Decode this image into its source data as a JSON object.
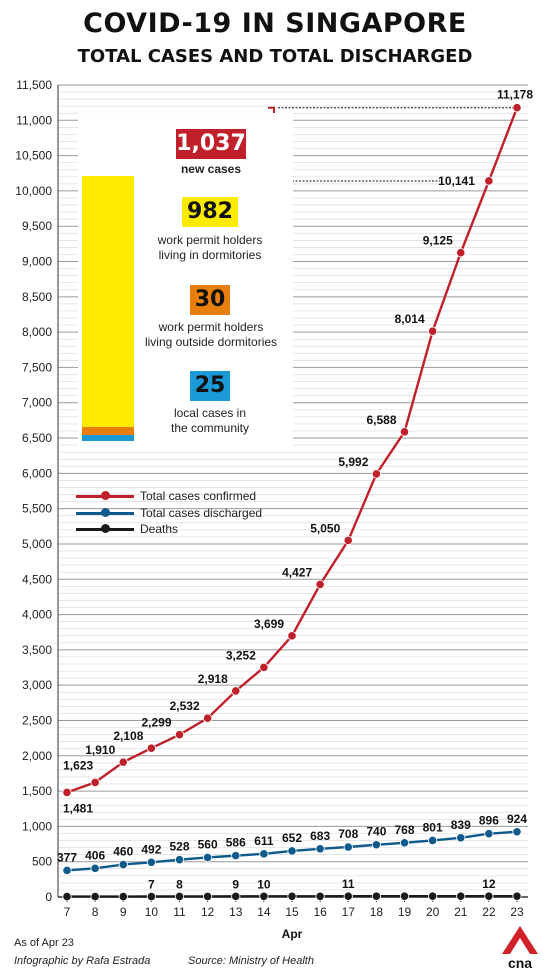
{
  "header": {
    "title": "COVID-19 IN SINGAPORE",
    "subtitle": "TOTAL CASES AND TOTAL DISCHARGED"
  },
  "inset": {
    "new_cases": {
      "value": "1,037",
      "caption": "new cases",
      "color": "#c0202a"
    },
    "dorm": {
      "value": "982",
      "caption1": "work permit holders",
      "caption2": "living in dormitories",
      "color": "#ffeb00",
      "amount": 982
    },
    "outside": {
      "value": "30",
      "caption1": "work permit holders",
      "caption2": "living outside dormitories",
      "color": "#e87e0c",
      "amount": 30
    },
    "local": {
      "value": "25",
      "caption1": "local cases in",
      "caption2": "the community",
      "color": "#1a9ad6",
      "amount": 25
    }
  },
  "footer": {
    "as_of": "As of Apr 23",
    "credit": "Infographic by Rafa Estrada",
    "source": "Source: Ministry of Health",
    "logo_text": "cna"
  },
  "chart_data": {
    "type": "line",
    "x": [
      "7",
      "8",
      "9",
      "10",
      "11",
      "12",
      "13",
      "14",
      "15",
      "16",
      "17",
      "18",
      "19",
      "20",
      "21",
      "22",
      "23"
    ],
    "xlabel": "Apr",
    "ylabel": "",
    "ylim": [
      0,
      11500
    ],
    "yticks": [
      0,
      500,
      1000,
      1500,
      2000,
      2500,
      3000,
      3500,
      4000,
      4500,
      5000,
      5500,
      6000,
      6500,
      7000,
      7500,
      8000,
      8500,
      9000,
      9500,
      10000,
      10500,
      11000,
      11500
    ],
    "ytick_labels": [
      "0",
      "500",
      "1,000",
      "1,500",
      "2,000",
      "2,500",
      "3,000",
      "3,500",
      "4,000",
      "4,500",
      "5,000",
      "5,500",
      "6,000",
      "6,500",
      "7,000",
      "7,500",
      "8,000",
      "8,500",
      "9,000",
      "9,500",
      "10,000",
      "10,500",
      "11,000",
      "11,500"
    ],
    "grid": true,
    "legend": "upper-left",
    "series": [
      {
        "name": "Total cases confirmed",
        "color": "#c0202a",
        "values": [
          1481,
          1623,
          1910,
          2108,
          2299,
          2532,
          2918,
          3252,
          3699,
          4427,
          5050,
          5992,
          6588,
          8014,
          9125,
          10141,
          11178
        ],
        "labels": [
          "1,481",
          "1,623",
          "1,910",
          "2,108",
          "2,299",
          "2,532",
          "2,918",
          "3,252",
          "3,699",
          "4,427",
          "5,050",
          "5,992",
          "6,588",
          "8,014",
          "9,125",
          "10,141",
          "11,178"
        ]
      },
      {
        "name": "Total cases discharged",
        "color": "#0f5a8c",
        "values": [
          377,
          406,
          460,
          492,
          528,
          560,
          586,
          611,
          652,
          683,
          708,
          740,
          768,
          801,
          839,
          896,
          924
        ],
        "labels": [
          "377",
          "406",
          "460",
          "492",
          "528",
          "560",
          "586",
          "611",
          "652",
          "683",
          "708",
          "740",
          "768",
          "801",
          "839",
          "896",
          "924"
        ]
      },
      {
        "name": "Deaths",
        "color": "#1a1a1a",
        "values": [
          6,
          6,
          6,
          7,
          8,
          8,
          9,
          10,
          10,
          10,
          11,
          11,
          11,
          11,
          11,
          12,
          12
        ],
        "labels": [
          "",
          "",
          "",
          "7",
          "8",
          "",
          "9",
          "10",
          "",
          "",
          "11",
          "",
          "",
          "",
          "",
          "12",
          ""
        ]
      }
    ]
  }
}
